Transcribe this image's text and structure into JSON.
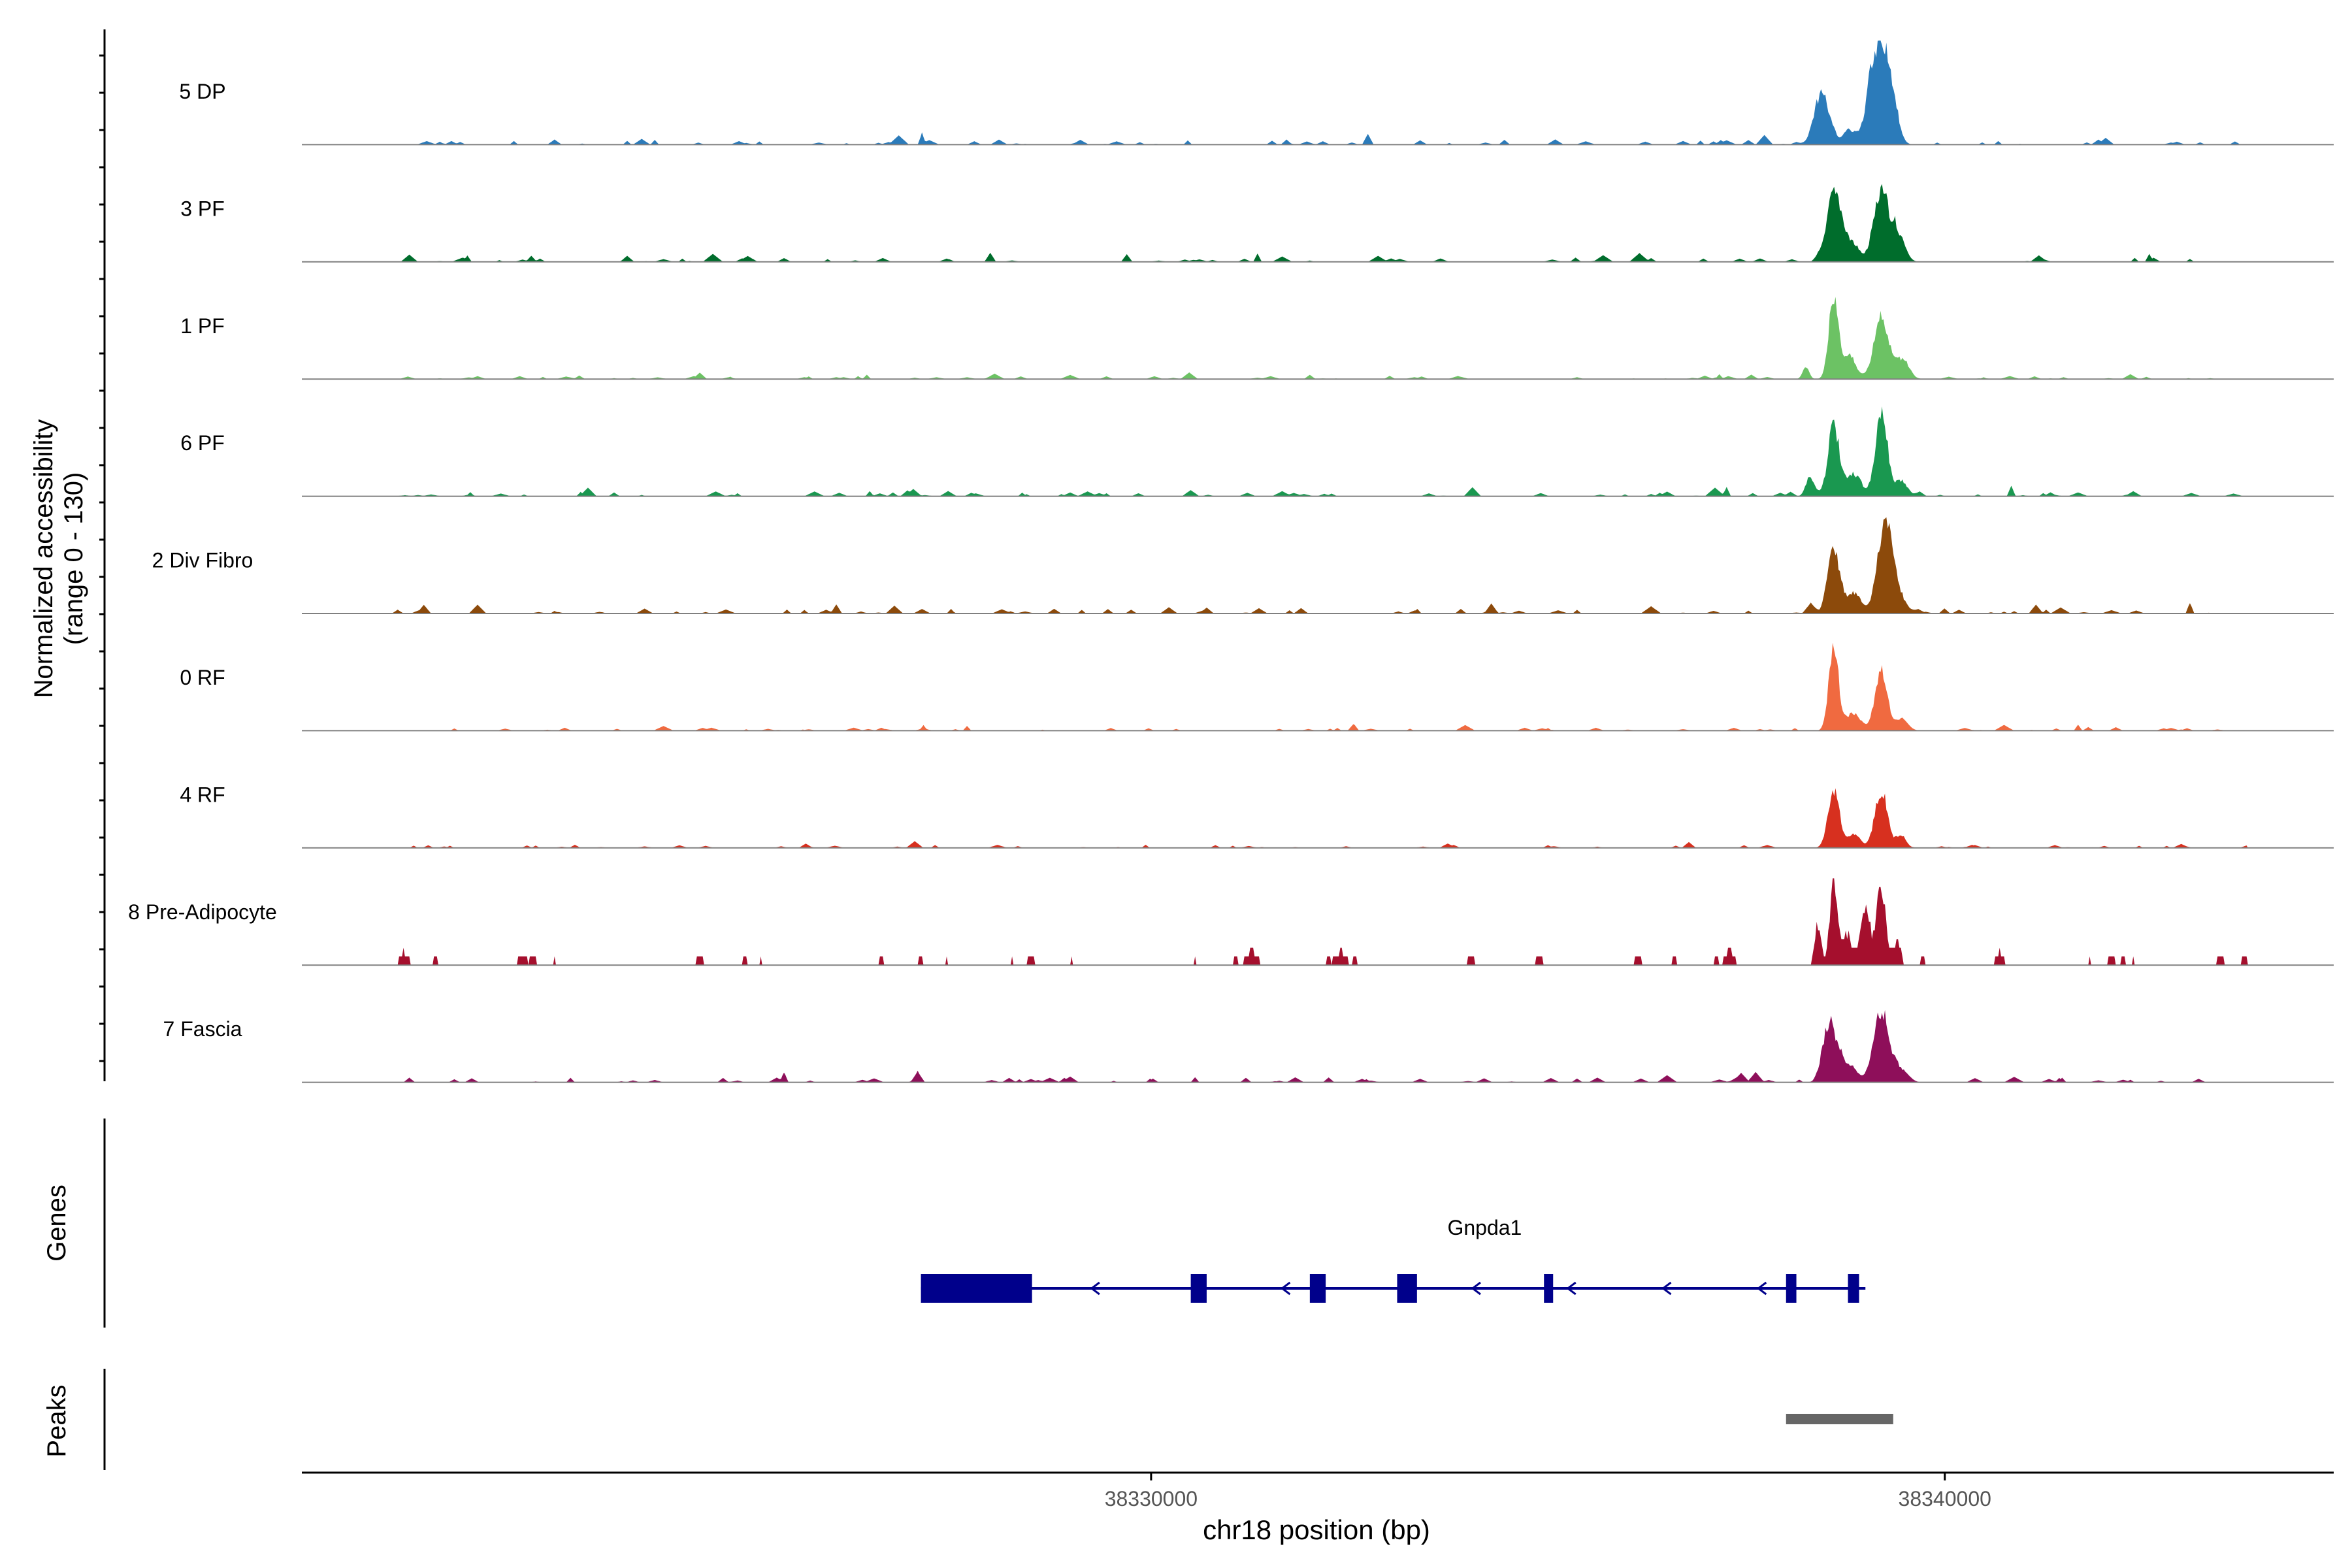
{
  "chart_data": {
    "type": "area",
    "title": "",
    "ylabel_line1": "Normalized accessibility",
    "ylabel_line2": "(range 0 - 130)",
    "xlabel": "chr18 position (bp)",
    "xlim": [
      38319300,
      38344900
    ],
    "xticks": [
      {
        "value": 38330000,
        "label": "38330000"
      },
      {
        "value": 38340000,
        "label": "38340000"
      }
    ],
    "ylim": [
      0,
      130
    ],
    "panels": {
      "genes_label": "Genes",
      "peaks_label": "Peaks"
    },
    "tracks": [
      {
        "name": "5 DP",
        "color": "#2b7bba",
        "peaks": [
          {
            "pos": 38338600,
            "height": 0.05,
            "width": 30
          },
          {
            "pos": 38338450,
            "height": 0.5,
            "width": 90
          },
          {
            "pos": 38338800,
            "height": 0.15,
            "width": 80
          },
          {
            "pos": 38339050,
            "height": 0.3,
            "width": 60
          },
          {
            "pos": 38339200,
            "height": 0.92,
            "width": 110
          },
          {
            "pos": 38339350,
            "height": 0.25,
            "width": 70
          }
        ],
        "noise": 0.05,
        "noise_seed": 11
      },
      {
        "name": "3 PF",
        "color": "#006d2c",
        "peaks": [
          {
            "pos": 38338600,
            "height": 0.7,
            "width": 85
          },
          {
            "pos": 38338800,
            "height": 0.2,
            "width": 90
          },
          {
            "pos": 38339200,
            "height": 0.72,
            "width": 95
          },
          {
            "pos": 38339420,
            "height": 0.25,
            "width": 80
          }
        ],
        "noise": 0.04,
        "noise_seed": 23
      },
      {
        "name": "1 PF",
        "color": "#6cc264",
        "peaks": [
          {
            "pos": 38338250,
            "height": 0.12,
            "width": 40
          },
          {
            "pos": 38338600,
            "height": 0.8,
            "width": 60
          },
          {
            "pos": 38338800,
            "height": 0.2,
            "width": 80
          },
          {
            "pos": 38339200,
            "height": 0.6,
            "width": 90
          },
          {
            "pos": 38339450,
            "height": 0.18,
            "width": 90
          }
        ],
        "noise": 0.03,
        "noise_seed": 37
      },
      {
        "name": "6 PF",
        "color": "#1a9850",
        "peaks": [
          {
            "pos": 38338300,
            "height": 0.2,
            "width": 50
          },
          {
            "pos": 38338600,
            "height": 0.7,
            "width": 70
          },
          {
            "pos": 38338850,
            "height": 0.22,
            "width": 90
          },
          {
            "pos": 38339200,
            "height": 0.82,
            "width": 75
          },
          {
            "pos": 38339450,
            "height": 0.15,
            "width": 80
          }
        ],
        "noise": 0.05,
        "noise_seed": 41
      },
      {
        "name": "2 Div Fibro",
        "color": "#8c4a0b",
        "peaks": [
          {
            "pos": 38338600,
            "height": 0.65,
            "width": 75
          },
          {
            "pos": 38338850,
            "height": 0.2,
            "width": 90
          },
          {
            "pos": 38339250,
            "height": 0.9,
            "width": 95
          },
          {
            "pos": 38339450,
            "height": 0.12,
            "width": 80
          }
        ],
        "noise": 0.05,
        "noise_seed": 53
      },
      {
        "name": "0 RF",
        "color": "#f06a40",
        "peaks": [
          {
            "pos": 38338600,
            "height": 0.85,
            "width": 60
          },
          {
            "pos": 38338850,
            "height": 0.18,
            "width": 90
          },
          {
            "pos": 38339200,
            "height": 0.6,
            "width": 75
          },
          {
            "pos": 38339450,
            "height": 0.12,
            "width": 80
          }
        ],
        "noise": 0.03,
        "noise_seed": 67
      },
      {
        "name": "4 RF",
        "color": "#d7301f",
        "peaks": [
          {
            "pos": 38338600,
            "height": 0.58,
            "width": 70
          },
          {
            "pos": 38338850,
            "height": 0.12,
            "width": 80
          },
          {
            "pos": 38339200,
            "height": 0.55,
            "width": 80
          },
          {
            "pos": 38339450,
            "height": 0.12,
            "width": 60
          }
        ],
        "noise": 0.03,
        "noise_seed": 79
      },
      {
        "name": "8 Pre-Adipocyte",
        "color": "#a50f2d",
        "peaks": [
          {
            "pos": 38338400,
            "height": 0.4,
            "width": 40
          },
          {
            "pos": 38338600,
            "height": 0.8,
            "width": 50
          },
          {
            "pos": 38338780,
            "height": 0.3,
            "width": 60
          },
          {
            "pos": 38339000,
            "height": 0.55,
            "width": 60
          },
          {
            "pos": 38339200,
            "height": 0.75,
            "width": 60
          },
          {
            "pos": 38339400,
            "height": 0.25,
            "width": 40
          }
        ],
        "noise": 0.08,
        "noise_seed": 97,
        "blocky": true
      },
      {
        "name": "7 Fascia",
        "color": "#8e0f5a",
        "peaks": [
          {
            "pos": 38338550,
            "height": 0.6,
            "width": 80
          },
          {
            "pos": 38338800,
            "height": 0.18,
            "width": 90
          },
          {
            "pos": 38339200,
            "height": 0.7,
            "width": 95
          },
          {
            "pos": 38339450,
            "height": 0.12,
            "width": 80
          }
        ],
        "noise": 0.05,
        "noise_seed": 101
      }
    ],
    "gene": {
      "name": "Gnpda1",
      "strand": "-",
      "color": "#00008b",
      "start": 38327100,
      "end": 38339000,
      "exons": [
        {
          "start": 38327100,
          "end": 38328500
        },
        {
          "start": 38330500,
          "end": 38330700
        },
        {
          "start": 38332000,
          "end": 38332200
        },
        {
          "start": 38333100,
          "end": 38333350
        },
        {
          "start": 38334950,
          "end": 38335050
        },
        {
          "start": 38338000,
          "end": 38338130
        },
        {
          "start": 38338780,
          "end": 38338920
        }
      ]
    },
    "peak_regions": [
      {
        "start": 38338000,
        "end": 38339350,
        "color": "#666666"
      }
    ]
  }
}
